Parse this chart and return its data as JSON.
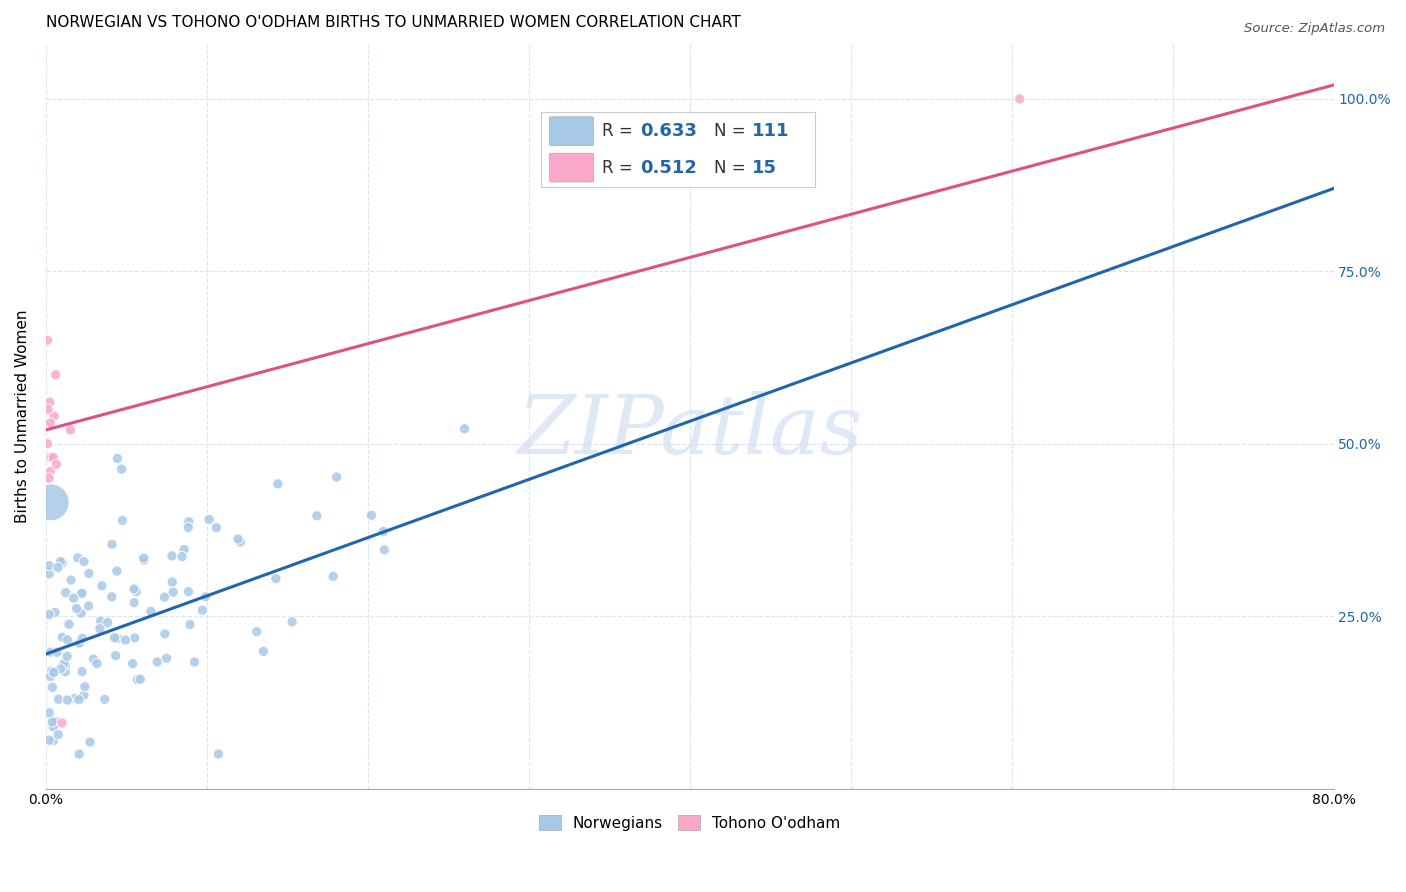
{
  "title": "NORWEGIAN VS TOHONO O'ODHAM BIRTHS TO UNMARRIED WOMEN CORRELATION CHART",
  "source": "Source: ZipAtlas.com",
  "ylabel": "Births to Unmarried Women",
  "legend_blue_label": "Norwegians",
  "legend_pink_label": "Tohono O'odham",
  "blue_R": 0.633,
  "blue_N": 111,
  "pink_R": 0.512,
  "pink_N": 15,
  "blue_color": "#a8c8e8",
  "pink_color": "#f9a8c9",
  "blue_line_color": "#2166ac",
  "pink_line_color": "#e05080",
  "watermark": "ZIPatlas",
  "watermark_color": "#c8daf0",
  "blue_line_x0": 0.0,
  "blue_line_y0": 0.195,
  "blue_line_x1": 0.8,
  "blue_line_y1": 0.87,
  "pink_line_x0": 0.0,
  "pink_line_y0": 0.52,
  "pink_line_x1": 0.8,
  "pink_line_y1": 1.02,
  "xlim": [
    0.0,
    0.8
  ],
  "ylim": [
    0.0,
    1.08
  ],
  "grid_color": "#d8e4f0",
  "title_fontsize": 11,
  "right_tick_color": "#2166ac"
}
